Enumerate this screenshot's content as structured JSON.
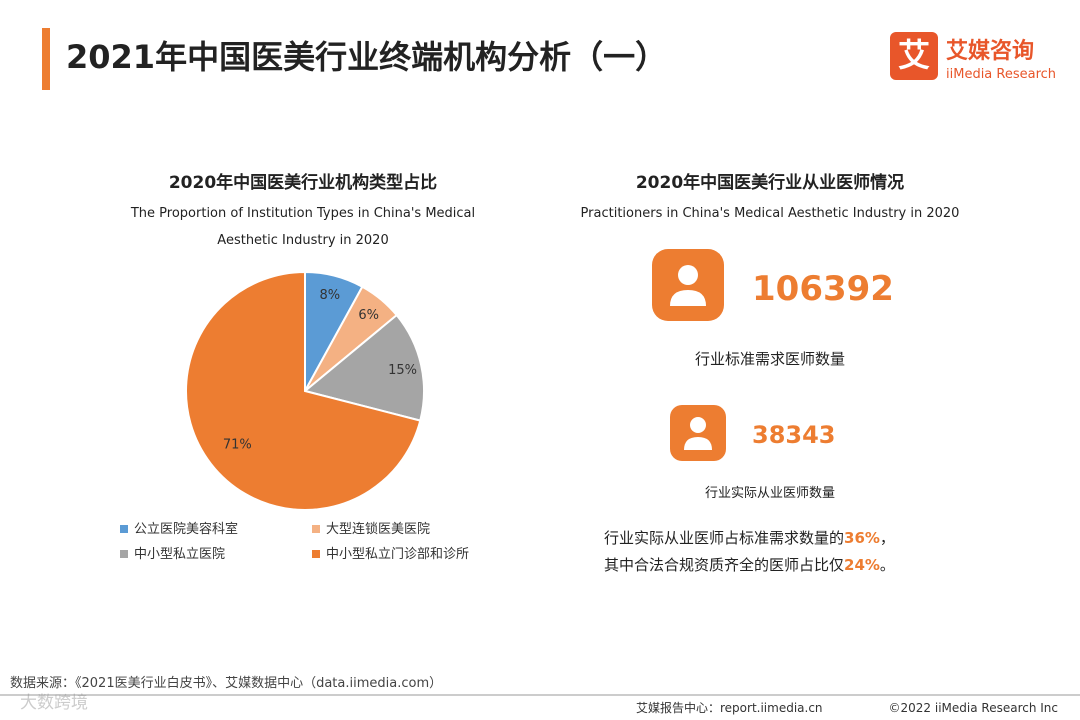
{
  "header": {
    "title": "2021年中国医美行业终端机构分析（一）",
    "logo_mark": "艾",
    "logo_name": "艾媒咨询",
    "logo_sub": "iiMedia Research"
  },
  "chart_data": {
    "type": "pie",
    "title": "2020年中国医美行业机构类型占比",
    "subtitle": [
      "The Proportion of Institution Types in China's Medical",
      "Aesthetic Industry in 2020"
    ],
    "categories": [
      "公立医院美容科室",
      "大型连锁医美医院",
      "中小型私立医院",
      "中小型私立门诊部和诊所"
    ],
    "values": [
      8,
      6,
      15,
      71
    ],
    "value_labels": [
      "8%",
      "6%",
      "15%",
      "71%"
    ],
    "colors": [
      "#5b9bd5",
      "#f4b183",
      "#a5a5a5",
      "#ed7d31"
    ]
  },
  "practitioners": {
    "title": "2020年中国医美行业从业医师情况",
    "subtitle": "Practitioners in China's Medical Aesthetic Industry in 2020",
    "stats": [
      {
        "value": "106392",
        "label": "行业标准需求医师数量"
      },
      {
        "value": "38343",
        "label": "行业实际从业医师数量"
      }
    ],
    "notes": [
      {
        "text": "行业实际从业医师占标准需求数量的",
        "highlight": "36%",
        "end": "，"
      },
      {
        "text": "其中合法合规资质齐全的医师占比仅",
        "highlight": "24%",
        "end": "。"
      }
    ]
  },
  "footer": {
    "source": "数据来源：《2021医美行业白皮书》、艾媒数据中心（data.iimedia.com）",
    "report": "艾媒报告中心：report.iimedia.cn",
    "copyright": "©2022  iiMedia Research  Inc",
    "watermark": "大数跨境"
  }
}
